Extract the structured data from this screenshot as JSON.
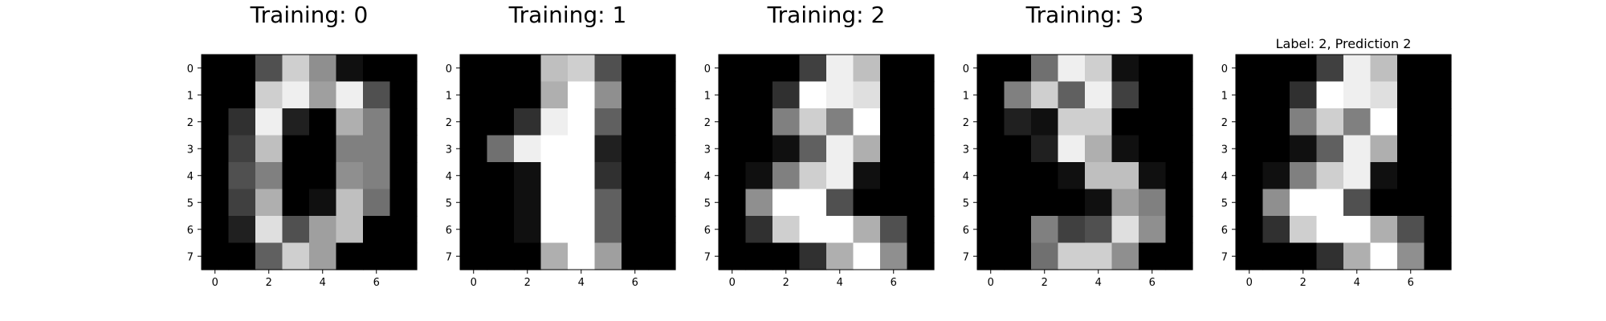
{
  "colormap": "gray_r-inverted (0=black, 16=white)",
  "value_range": [
    0,
    16
  ],
  "chart_data": [
    {
      "type": "heatmap",
      "title": "Training: 0",
      "xticks": [
        0,
        2,
        4,
        6
      ],
      "yticks": [
        0,
        1,
        2,
        3,
        4,
        5,
        6,
        7
      ],
      "grid": false,
      "values": [
        [
          0,
          0,
          5,
          13,
          9,
          1,
          0,
          0
        ],
        [
          0,
          0,
          13,
          15,
          10,
          15,
          5,
          0
        ],
        [
          0,
          3,
          15,
          2,
          0,
          11,
          8,
          0
        ],
        [
          0,
          4,
          12,
          0,
          0,
          8,
          8,
          0
        ],
        [
          0,
          5,
          8,
          0,
          0,
          9,
          8,
          0
        ],
        [
          0,
          4,
          11,
          0,
          1,
          12,
          7,
          0
        ],
        [
          0,
          2,
          14,
          5,
          10,
          12,
          0,
          0
        ],
        [
          0,
          0,
          6,
          13,
          10,
          0,
          0,
          0
        ]
      ]
    },
    {
      "type": "heatmap",
      "title": "Training: 1",
      "xticks": [
        0,
        2,
        4,
        6
      ],
      "yticks": [
        0,
        1,
        2,
        3,
        4,
        5,
        6,
        7
      ],
      "grid": false,
      "values": [
        [
          0,
          0,
          0,
          12,
          13,
          5,
          0,
          0
        ],
        [
          0,
          0,
          0,
          11,
          16,
          9,
          0,
          0
        ],
        [
          0,
          0,
          3,
          15,
          16,
          6,
          0,
          0
        ],
        [
          0,
          7,
          15,
          16,
          16,
          2,
          0,
          0
        ],
        [
          0,
          0,
          1,
          16,
          16,
          3,
          0,
          0
        ],
        [
          0,
          0,
          1,
          16,
          16,
          6,
          0,
          0
        ],
        [
          0,
          0,
          1,
          16,
          16,
          6,
          0,
          0
        ],
        [
          0,
          0,
          0,
          11,
          16,
          10,
          0,
          0
        ]
      ]
    },
    {
      "type": "heatmap",
      "title": "Training: 2",
      "xticks": [
        0,
        2,
        4,
        6
      ],
      "yticks": [
        0,
        1,
        2,
        3,
        4,
        5,
        6,
        7
      ],
      "grid": false,
      "values": [
        [
          0,
          0,
          0,
          4,
          15,
          12,
          0,
          0
        ],
        [
          0,
          0,
          3,
          16,
          15,
          14,
          0,
          0
        ],
        [
          0,
          0,
          8,
          13,
          8,
          16,
          0,
          0
        ],
        [
          0,
          0,
          1,
          6,
          15,
          11,
          0,
          0
        ],
        [
          0,
          1,
          8,
          13,
          15,
          1,
          0,
          0
        ],
        [
          0,
          9,
          16,
          16,
          5,
          0,
          0,
          0
        ],
        [
          0,
          3,
          13,
          16,
          16,
          11,
          5,
          0
        ],
        [
          0,
          0,
          0,
          3,
          11,
          16,
          9,
          0
        ]
      ]
    },
    {
      "type": "heatmap",
      "title": "Training: 3",
      "xticks": [
        0,
        2,
        4,
        6
      ],
      "yticks": [
        0,
        1,
        2,
        3,
        4,
        5,
        6,
        7
      ],
      "grid": false,
      "values": [
        [
          0,
          0,
          7,
          15,
          13,
          1,
          0,
          0
        ],
        [
          0,
          8,
          13,
          6,
          15,
          4,
          0,
          0
        ],
        [
          0,
          2,
          1,
          13,
          13,
          0,
          0,
          0
        ],
        [
          0,
          0,
          2,
          15,
          11,
          1,
          0,
          0
        ],
        [
          0,
          0,
          0,
          1,
          12,
          12,
          1,
          0
        ],
        [
          0,
          0,
          0,
          0,
          1,
          10,
          8,
          0
        ],
        [
          0,
          0,
          8,
          4,
          5,
          14,
          9,
          0
        ],
        [
          0,
          0,
          7,
          13,
          13,
          9,
          0,
          0
        ]
      ]
    },
    {
      "type": "heatmap",
      "title": "Label: 2, Prediction 2",
      "xticks": [
        0,
        2,
        4,
        6
      ],
      "yticks": [
        0,
        1,
        2,
        3,
        4,
        5,
        6,
        7
      ],
      "grid": false,
      "values": [
        [
          0,
          0,
          0,
          4,
          15,
          12,
          0,
          0
        ],
        [
          0,
          0,
          3,
          16,
          15,
          14,
          0,
          0
        ],
        [
          0,
          0,
          8,
          13,
          8,
          16,
          0,
          0
        ],
        [
          0,
          0,
          1,
          6,
          15,
          11,
          0,
          0
        ],
        [
          0,
          1,
          8,
          13,
          15,
          1,
          0,
          0
        ],
        [
          0,
          9,
          16,
          16,
          5,
          0,
          0,
          0
        ],
        [
          0,
          3,
          13,
          16,
          16,
          11,
          5,
          0
        ],
        [
          0,
          0,
          0,
          3,
          11,
          16,
          9,
          0
        ]
      ]
    }
  ]
}
